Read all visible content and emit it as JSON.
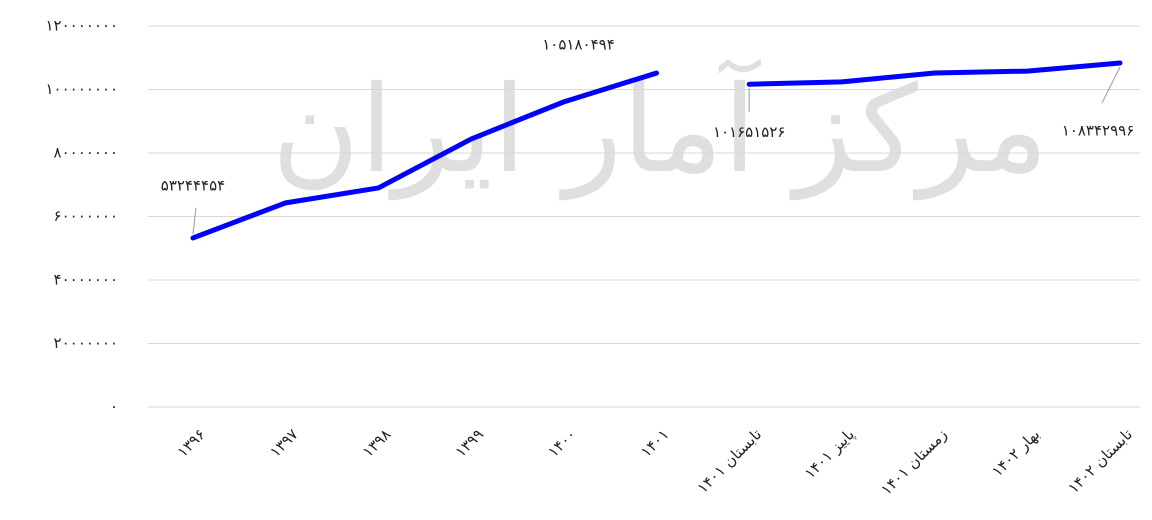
{
  "watermark": "مرکز آمار ایران",
  "chart_data": {
    "type": "line",
    "categories": [
      "۱۳۹۶",
      "۱۳۹۷",
      "۱۳۹۸",
      "۱۳۹۹",
      "۱۴۰۰",
      "۱۴۰۱",
      "تابستان ۱۴۰۱",
      "پاییز ۱۴۰۱",
      "زمستان ۱۴۰۱",
      "بهار ۱۴۰۲",
      "تابستان ۱۴۰۲"
    ],
    "series": [
      {
        "color": "#0000ff",
        "values": [
          53244454,
          64300000,
          69000000,
          84400000,
          96100000,
          105180494,
          null,
          null,
          null,
          null,
          null
        ],
        "value_labels": [
          "۵۳۲۴۴۴۵۴",
          null,
          null,
          null,
          null,
          "۱۰۵۱۸۰۴۹۴",
          null,
          null,
          null,
          null,
          null
        ]
      },
      {
        "color": "#0000ff",
        "values": [
          null,
          null,
          null,
          null,
          null,
          null,
          101651526,
          102400000,
          105200000,
          105800000,
          108342996
        ],
        "value_labels": [
          null,
          null,
          null,
          null,
          null,
          null,
          "۱۰۱۶۵۱۵۲۶",
          null,
          null,
          null,
          "۱۰۸۳۴۲۹۹۶"
        ]
      }
    ],
    "ylim": [
      0,
      120000000
    ],
    "yticks": [
      {
        "value": 0,
        "label": "۰"
      },
      {
        "value": 20000000,
        "label": "۲۰۰۰۰۰۰۰"
      },
      {
        "value": 40000000,
        "label": "۴۰۰۰۰۰۰۰"
      },
      {
        "value": 60000000,
        "label": "۶۰۰۰۰۰۰۰"
      },
      {
        "value": 80000000,
        "label": "۸۰۰۰۰۰۰۰"
      },
      {
        "value": 100000000,
        "label": "۱۰۰۰۰۰۰۰۰"
      },
      {
        "value": 120000000,
        "label": "۱۲۰۰۰۰۰۰۰"
      }
    ],
    "grid": true
  }
}
